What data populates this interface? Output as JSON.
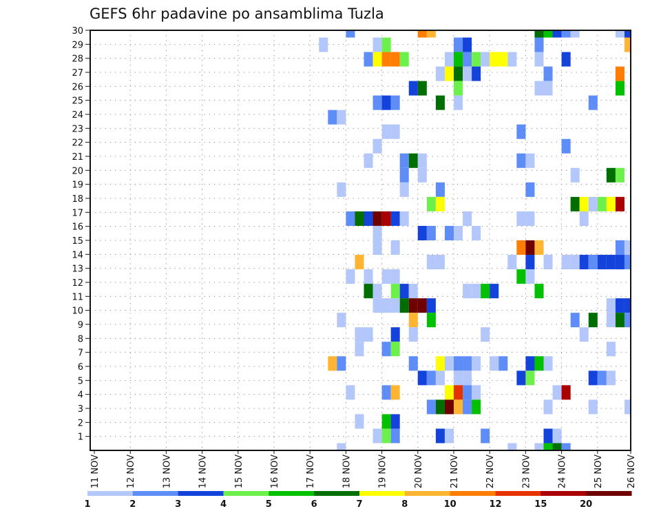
{
  "chart_data": {
    "type": "heatmap",
    "title": "GEFS 6hr padavine po ansamblima Tuzla",
    "xlabel": "",
    "ylabel": "",
    "x_start": "11 NOV 00Z",
    "step_hours": 6,
    "x_tick_labels": [
      "11 NOV",
      "12 NOV",
      "13 NOV",
      "14 NOV",
      "15 NOV",
      "16 NOV",
      "17 NOV",
      "18 NOV",
      "19 NOV",
      "20 NOV",
      "21 NOV",
      "22 NOV",
      "23 NOV",
      "24 NOV",
      "25 NOV",
      "26 NOV"
    ],
    "y_tick_labels": [
      "1",
      "2",
      "3",
      "4",
      "5",
      "6",
      "7",
      "8",
      "9",
      "10",
      "11",
      "12",
      "13",
      "14",
      "15",
      "16",
      "17",
      "18",
      "19",
      "20",
      "21",
      "22",
      "23",
      "24",
      "25",
      "26",
      "27",
      "28",
      "29",
      "30"
    ],
    "ylim": [
      0,
      30
    ],
    "grid": true,
    "legend": {
      "placement": "bottom",
      "labels": [
        "1",
        "2",
        "3",
        "4",
        "5",
        "6",
        "7",
        "8",
        "10",
        "12",
        "15",
        "20"
      ],
      "colors": [
        "#b4c7fa",
        "#5f8df7",
        "#1443dc",
        "#6ef04c",
        "#00c000",
        "#006e00",
        "#ffff00",
        "#ffb432",
        "#ff7d00",
        "#e63200",
        "#aa0000",
        "#6e0000"
      ]
    },
    "value_note": "cells: [6h step index from 11 NOV 00Z, color class 1-12 (legend bin)]",
    "members": [
      {
        "member": 30,
        "cells": [
          [
            28,
            2
          ],
          [
            36,
            9
          ],
          [
            37,
            8
          ],
          [
            49,
            6
          ],
          [
            50,
            5
          ],
          [
            51,
            3
          ],
          [
            52,
            2
          ],
          [
            53,
            1
          ],
          [
            58,
            1
          ],
          [
            59,
            3
          ]
        ]
      },
      {
        "member": 29,
        "cells": [
          [
            25,
            1
          ],
          [
            31,
            1
          ],
          [
            32,
            4
          ],
          [
            40,
            2
          ],
          [
            41,
            3
          ],
          [
            49,
            2
          ],
          [
            59,
            8
          ]
        ]
      },
      {
        "member": 28,
        "cells": [
          [
            30,
            2
          ],
          [
            31,
            7
          ],
          [
            32,
            9
          ],
          [
            33,
            9
          ],
          [
            34,
            4
          ],
          [
            39,
            1
          ],
          [
            40,
            5
          ],
          [
            41,
            2
          ],
          [
            42,
            4
          ],
          [
            43,
            1
          ],
          [
            44,
            7
          ],
          [
            45,
            7
          ],
          [
            46,
            1
          ],
          [
            49,
            1
          ],
          [
            52,
            3
          ]
        ]
      },
      {
        "member": 27,
        "cells": [
          [
            38,
            1
          ],
          [
            39,
            7
          ],
          [
            40,
            6
          ],
          [
            41,
            1
          ],
          [
            42,
            3
          ],
          [
            50,
            2
          ],
          [
            58,
            9
          ]
        ]
      },
      {
        "member": 26,
        "cells": [
          [
            35,
            3
          ],
          [
            36,
            6
          ],
          [
            40,
            4
          ],
          [
            49,
            1
          ],
          [
            50,
            1
          ],
          [
            58,
            5
          ]
        ]
      },
      {
        "member": 25,
        "cells": [
          [
            31,
            2
          ],
          [
            32,
            3
          ],
          [
            33,
            2
          ],
          [
            38,
            6
          ],
          [
            40,
            1
          ],
          [
            55,
            2
          ]
        ]
      },
      {
        "member": 24,
        "cells": [
          [
            26,
            2
          ],
          [
            27,
            1
          ]
        ]
      },
      {
        "member": 23,
        "cells": [
          [
            32,
            1
          ],
          [
            33,
            1
          ],
          [
            47,
            2
          ]
        ]
      },
      {
        "member": 22,
        "cells": [
          [
            31,
            1
          ],
          [
            52,
            2
          ]
        ]
      },
      {
        "member": 21,
        "cells": [
          [
            30,
            1
          ],
          [
            34,
            2
          ],
          [
            35,
            6
          ],
          [
            36,
            1
          ],
          [
            47,
            2
          ],
          [
            48,
            1
          ]
        ]
      },
      {
        "member": 20,
        "cells": [
          [
            34,
            2
          ],
          [
            36,
            1
          ],
          [
            53,
            1
          ],
          [
            57,
            6
          ],
          [
            58,
            4
          ]
        ]
      },
      {
        "member": 19,
        "cells": [
          [
            27,
            1
          ],
          [
            34,
            1
          ],
          [
            38,
            2
          ],
          [
            48,
            2
          ]
        ]
      },
      {
        "member": 18,
        "cells": [
          [
            37,
            4
          ],
          [
            38,
            7
          ],
          [
            53,
            6
          ],
          [
            54,
            7
          ],
          [
            55,
            1
          ],
          [
            56,
            4
          ],
          [
            57,
            7
          ],
          [
            58,
            11
          ]
        ]
      },
      {
        "member": 17,
        "cells": [
          [
            28,
            2
          ],
          [
            29,
            6
          ],
          [
            30,
            3
          ],
          [
            31,
            12
          ],
          [
            32,
            11
          ],
          [
            33,
            3
          ],
          [
            34,
            1
          ],
          [
            41,
            1
          ],
          [
            47,
            1
          ],
          [
            48,
            1
          ],
          [
            54,
            1
          ]
        ]
      },
      {
        "member": 16,
        "cells": [
          [
            31,
            1
          ],
          [
            36,
            3
          ],
          [
            37,
            2
          ],
          [
            39,
            2
          ],
          [
            40,
            1
          ],
          [
            42,
            1
          ]
        ]
      },
      {
        "member": 15,
        "cells": [
          [
            31,
            1
          ],
          [
            33,
            1
          ],
          [
            47,
            9
          ],
          [
            48,
            12
          ],
          [
            49,
            8
          ],
          [
            58,
            2
          ],
          [
            59,
            1
          ]
        ]
      },
      {
        "member": 14,
        "cells": [
          [
            29,
            8
          ],
          [
            37,
            1
          ],
          [
            38,
            1
          ],
          [
            46,
            1
          ],
          [
            48,
            3
          ],
          [
            50,
            1
          ],
          [
            52,
            1
          ],
          [
            53,
            1
          ],
          [
            54,
            3
          ],
          [
            55,
            2
          ],
          [
            56,
            3
          ],
          [
            57,
            3
          ],
          [
            58,
            3
          ],
          [
            59,
            2
          ]
        ]
      },
      {
        "member": 13,
        "cells": [
          [
            28,
            1
          ],
          [
            30,
            1
          ],
          [
            32,
            1
          ],
          [
            33,
            1
          ],
          [
            47,
            5
          ],
          [
            48,
            1
          ]
        ]
      },
      {
        "member": 12,
        "cells": [
          [
            30,
            6
          ],
          [
            31,
            1
          ],
          [
            33,
            4
          ],
          [
            34,
            3
          ],
          [
            35,
            1
          ],
          [
            41,
            1
          ],
          [
            42,
            1
          ],
          [
            43,
            5
          ],
          [
            44,
            3
          ],
          [
            49,
            5
          ]
        ]
      },
      {
        "member": 11,
        "cells": [
          [
            31,
            1
          ],
          [
            32,
            1
          ],
          [
            33,
            1
          ],
          [
            34,
            6
          ],
          [
            35,
            12
          ],
          [
            36,
            12
          ],
          [
            37,
            3
          ],
          [
            57,
            1
          ],
          [
            58,
            3
          ],
          [
            59,
            3
          ]
        ]
      },
      {
        "member": 10,
        "cells": [
          [
            27,
            1
          ],
          [
            35,
            8
          ],
          [
            37,
            5
          ],
          [
            53,
            2
          ],
          [
            55,
            6
          ],
          [
            57,
            1
          ],
          [
            58,
            6
          ],
          [
            59,
            2
          ]
        ]
      },
      {
        "member": 9,
        "cells": [
          [
            29,
            1
          ],
          [
            30,
            1
          ],
          [
            33,
            3
          ],
          [
            35,
            1
          ],
          [
            43,
            1
          ],
          [
            54,
            1
          ]
        ]
      },
      {
        "member": 8,
        "cells": [
          [
            29,
            1
          ],
          [
            32,
            2
          ],
          [
            33,
            4
          ],
          [
            57,
            1
          ]
        ]
      },
      {
        "member": 7,
        "cells": [
          [
            26,
            8
          ],
          [
            27,
            2
          ],
          [
            35,
            2
          ],
          [
            38,
            7
          ],
          [
            39,
            1
          ],
          [
            40,
            2
          ],
          [
            41,
            2
          ],
          [
            42,
            1
          ],
          [
            44,
            1
          ],
          [
            45,
            2
          ],
          [
            48,
            3
          ],
          [
            49,
            5
          ],
          [
            50,
            1
          ]
        ]
      },
      {
        "member": 6,
        "cells": [
          [
            36,
            3
          ],
          [
            37,
            2
          ],
          [
            38,
            1
          ],
          [
            40,
            1
          ],
          [
            41,
            1
          ],
          [
            47,
            3
          ],
          [
            48,
            4
          ],
          [
            55,
            3
          ],
          [
            56,
            2
          ],
          [
            57,
            1
          ]
        ]
      },
      {
        "member": 5,
        "cells": [
          [
            28,
            1
          ],
          [
            32,
            2
          ],
          [
            33,
            8
          ],
          [
            39,
            7
          ],
          [
            40,
            10
          ],
          [
            41,
            2
          ],
          [
            42,
            1
          ],
          [
            51,
            1
          ],
          [
            52,
            11
          ]
        ]
      },
      {
        "member": 4,
        "cells": [
          [
            37,
            2
          ],
          [
            38,
            6
          ],
          [
            39,
            12
          ],
          [
            40,
            8
          ],
          [
            41,
            2
          ],
          [
            42,
            5
          ],
          [
            50,
            1
          ],
          [
            55,
            1
          ],
          [
            59,
            1
          ]
        ]
      },
      {
        "member": 3,
        "cells": [
          [
            29,
            1
          ],
          [
            32,
            5
          ],
          [
            33,
            3
          ]
        ]
      },
      {
        "member": 2,
        "cells": [
          [
            31,
            1
          ],
          [
            32,
            4
          ],
          [
            33,
            2
          ],
          [
            38,
            3
          ],
          [
            39,
            1
          ],
          [
            43,
            2
          ],
          [
            50,
            3
          ],
          [
            51,
            1
          ]
        ]
      },
      {
        "member": 1,
        "cells": [
          [
            27,
            1
          ],
          [
            46,
            1
          ],
          [
            49,
            1
          ],
          [
            50,
            5
          ],
          [
            51,
            6
          ],
          [
            52,
            2
          ]
        ]
      }
    ]
  }
}
